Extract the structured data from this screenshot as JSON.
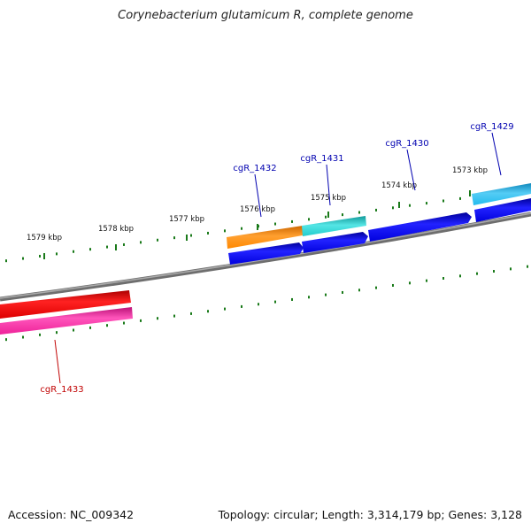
{
  "header": {
    "title": "Corynebacterium glutamicum R, complete genome"
  },
  "footer": {
    "accession": "Accession: NC_009342",
    "summary": "Topology: circular; Length: 3,314,179 bp; Genes: 3,128"
  },
  "map": {
    "ticks": [
      {
        "kbp": 1573,
        "label": "1573 kbp"
      },
      {
        "kbp": 1574,
        "label": "1574 kbp"
      },
      {
        "kbp": 1575,
        "label": "1575 kbp"
      },
      {
        "kbp": 1576,
        "label": "1576 kbp"
      },
      {
        "kbp": 1577,
        "label": "1577 kbp"
      },
      {
        "kbp": 1578,
        "label": "1578 kbp"
      },
      {
        "kbp": 1579,
        "label": "1579 kbp"
      }
    ],
    "genes": [
      {
        "name": "cgR_1429",
        "label_color": "#0000b0"
      },
      {
        "name": "cgR_1430",
        "label_color": "#0000b0"
      },
      {
        "name": "cgR_1431",
        "label_color": "#0000b0"
      },
      {
        "name": "cgR_1432",
        "label_color": "#0000b0"
      },
      {
        "name": "cgR_1433",
        "label_color": "#c00000"
      }
    ],
    "colors": {
      "backbone": "#808080",
      "tick": "#1a7a1a",
      "cds_forward": "#0000ee",
      "outer_orange": "#ff8800",
      "outer_cyan": "#22d0d0",
      "outer_light_blue": "#22bbee",
      "red_track": "#ee0000",
      "pink_track": "#ff2299"
    }
  }
}
